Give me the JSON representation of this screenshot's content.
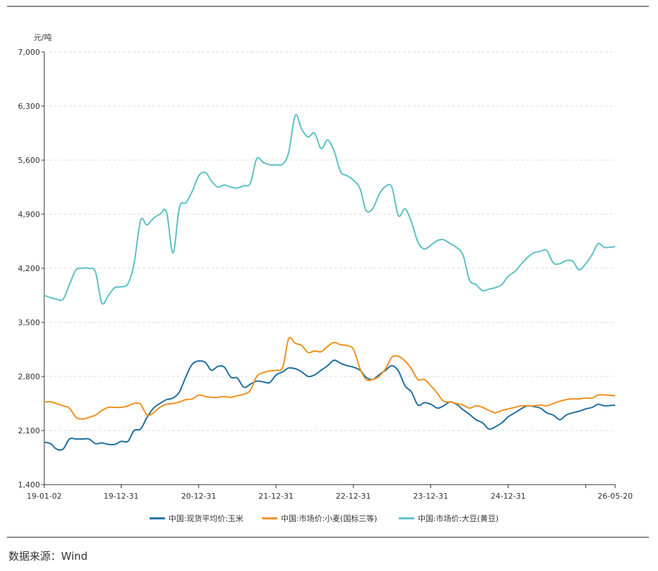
{
  "chart_data": {
    "type": "line",
    "ylabel": "元/吨",
    "ylim": [
      1400,
      7000
    ],
    "yticks": [
      1400,
      2100,
      2800,
      3500,
      4200,
      4900,
      5600,
      6300,
      7000
    ],
    "ytick_labels": [
      "1,400",
      "2,100",
      "2,800",
      "3,500",
      "4,200",
      "4,900",
      "5,600",
      "6,300",
      "7,000"
    ],
    "xlim": [
      "2019-01-02",
      "2026-05-20"
    ],
    "xticks": [
      "2019-01-02",
      "2019-12-31",
      "2020-12-31",
      "2021-12-31",
      "2022-12-31",
      "2023-12-31",
      "2024-12-31",
      "2026-05-20"
    ],
    "xtick_labels": [
      "19-01-02",
      "19-12-31",
      "20-12-31",
      "21-12-31",
      "22-12-31",
      "23-12-31",
      "24-12-31",
      "26-05-20"
    ],
    "grid": "horizontal-dashed",
    "legend": "bottom",
    "series": [
      {
        "name": "中国:现货平均价:玉米",
        "color": "#1f6f9f",
        "points": [
          [
            "2019-01-02",
            1950
          ],
          [
            "2019-02-01",
            1930
          ],
          [
            "2019-03-01",
            1860
          ],
          [
            "2019-04-01",
            1860
          ],
          [
            "2019-05-01",
            1990
          ],
          [
            "2019-06-01",
            1990
          ],
          [
            "2019-07-01",
            1990
          ],
          [
            "2019-08-01",
            1990
          ],
          [
            "2019-09-01",
            1930
          ],
          [
            "2019-10-01",
            1940
          ],
          [
            "2019-11-01",
            1920
          ],
          [
            "2019-12-01",
            1920
          ],
          [
            "2020-01-01",
            1960
          ],
          [
            "2020-02-01",
            1960
          ],
          [
            "2020-03-01",
            2100
          ],
          [
            "2020-04-01",
            2120
          ],
          [
            "2020-05-01",
            2270
          ],
          [
            "2020-06-01",
            2390
          ],
          [
            "2020-07-01",
            2450
          ],
          [
            "2020-08-01",
            2500
          ],
          [
            "2020-09-01",
            2520
          ],
          [
            "2020-10-01",
            2600
          ],
          [
            "2020-11-01",
            2800
          ],
          [
            "2020-12-01",
            2960
          ],
          [
            "2021-01-01",
            3000
          ],
          [
            "2021-02-01",
            2980
          ],
          [
            "2021-03-01",
            2880
          ],
          [
            "2021-04-01",
            2930
          ],
          [
            "2021-05-01",
            2920
          ],
          [
            "2021-06-01",
            2790
          ],
          [
            "2021-07-01",
            2780
          ],
          [
            "2021-08-01",
            2660
          ],
          [
            "2021-09-01",
            2700
          ],
          [
            "2021-10-01",
            2740
          ],
          [
            "2021-11-01",
            2730
          ],
          [
            "2021-12-01",
            2720
          ],
          [
            "2022-01-01",
            2820
          ],
          [
            "2022-02-01",
            2860
          ],
          [
            "2022-03-01",
            2910
          ],
          [
            "2022-04-01",
            2900
          ],
          [
            "2022-05-01",
            2860
          ],
          [
            "2022-06-01",
            2800
          ],
          [
            "2022-07-01",
            2820
          ],
          [
            "2022-08-01",
            2880
          ],
          [
            "2022-09-01",
            2940
          ],
          [
            "2022-10-01",
            3010
          ],
          [
            "2022-11-01",
            2970
          ],
          [
            "2022-12-01",
            2940
          ],
          [
            "2023-01-01",
            2920
          ],
          [
            "2023-02-01",
            2880
          ],
          [
            "2023-03-01",
            2790
          ],
          [
            "2023-04-01",
            2760
          ],
          [
            "2023-05-01",
            2820
          ],
          [
            "2023-06-01",
            2880
          ],
          [
            "2023-07-01",
            2940
          ],
          [
            "2023-08-01",
            2870
          ],
          [
            "2023-09-01",
            2680
          ],
          [
            "2023-10-01",
            2600
          ],
          [
            "2023-11-01",
            2430
          ],
          [
            "2023-12-01",
            2460
          ],
          [
            "2024-01-01",
            2440
          ],
          [
            "2024-02-01",
            2390
          ],
          [
            "2024-03-01",
            2420
          ],
          [
            "2024-04-01",
            2470
          ],
          [
            "2024-05-01",
            2440
          ],
          [
            "2024-06-01",
            2370
          ],
          [
            "2024-07-01",
            2310
          ],
          [
            "2024-08-01",
            2240
          ],
          [
            "2024-09-01",
            2200
          ],
          [
            "2024-10-01",
            2120
          ],
          [
            "2024-11-01",
            2150
          ],
          [
            "2024-12-01",
            2200
          ],
          [
            "2025-01-01",
            2280
          ],
          [
            "2025-02-01",
            2330
          ],
          [
            "2025-03-01",
            2380
          ],
          [
            "2025-04-01",
            2420
          ],
          [
            "2025-05-01",
            2410
          ],
          [
            "2025-06-01",
            2390
          ],
          [
            "2025-07-01",
            2330
          ],
          [
            "2025-08-01",
            2300
          ],
          [
            "2025-09-01",
            2240
          ],
          [
            "2025-10-01",
            2300
          ],
          [
            "2025-11-01",
            2330
          ],
          [
            "2025-12-01",
            2350
          ],
          [
            "2026-01-01",
            2380
          ],
          [
            "2026-02-01",
            2400
          ],
          [
            "2026-03-01",
            2440
          ],
          [
            "2026-04-01",
            2420
          ],
          [
            "2026-05-20",
            2430
          ]
        ]
      },
      {
        "name": "中国:市场价:小麦(国标三等)",
        "color": "#f0901f",
        "points": [
          [
            "2019-01-02",
            2470
          ],
          [
            "2019-02-01",
            2470
          ],
          [
            "2019-03-01",
            2450
          ],
          [
            "2019-04-01",
            2420
          ],
          [
            "2019-05-01",
            2390
          ],
          [
            "2019-06-01",
            2270
          ],
          [
            "2019-07-01",
            2250
          ],
          [
            "2019-08-01",
            2270
          ],
          [
            "2019-09-01",
            2300
          ],
          [
            "2019-10-01",
            2360
          ],
          [
            "2019-11-01",
            2400
          ],
          [
            "2019-12-01",
            2400
          ],
          [
            "2020-01-01",
            2400
          ],
          [
            "2020-02-01",
            2420
          ],
          [
            "2020-03-01",
            2450
          ],
          [
            "2020-04-01",
            2440
          ],
          [
            "2020-05-01",
            2300
          ],
          [
            "2020-06-01",
            2330
          ],
          [
            "2020-07-01",
            2400
          ],
          [
            "2020-08-01",
            2440
          ],
          [
            "2020-09-01",
            2450
          ],
          [
            "2020-10-01",
            2470
          ],
          [
            "2020-11-01",
            2500
          ],
          [
            "2020-12-01",
            2510
          ],
          [
            "2021-01-01",
            2560
          ],
          [
            "2021-02-01",
            2540
          ],
          [
            "2021-03-01",
            2530
          ],
          [
            "2021-04-01",
            2530
          ],
          [
            "2021-05-01",
            2540
          ],
          [
            "2021-06-01",
            2530
          ],
          [
            "2021-07-01",
            2550
          ],
          [
            "2021-08-01",
            2570
          ],
          [
            "2021-09-01",
            2620
          ],
          [
            "2021-10-01",
            2800
          ],
          [
            "2021-11-01",
            2850
          ],
          [
            "2021-12-01",
            2870
          ],
          [
            "2022-01-01",
            2880
          ],
          [
            "2022-02-01",
            2920
          ],
          [
            "2022-03-01",
            3290
          ],
          [
            "2022-04-01",
            3230
          ],
          [
            "2022-05-01",
            3200
          ],
          [
            "2022-06-01",
            3110
          ],
          [
            "2022-07-01",
            3130
          ],
          [
            "2022-08-01",
            3120
          ],
          [
            "2022-09-01",
            3190
          ],
          [
            "2022-10-01",
            3240
          ],
          [
            "2022-11-01",
            3210
          ],
          [
            "2022-12-01",
            3200
          ],
          [
            "2023-01-01",
            3150
          ],
          [
            "2023-02-01",
            2900
          ],
          [
            "2023-03-01",
            2760
          ],
          [
            "2023-04-01",
            2760
          ],
          [
            "2023-05-01",
            2800
          ],
          [
            "2023-06-01",
            2900
          ],
          [
            "2023-07-01",
            3050
          ],
          [
            "2023-08-01",
            3060
          ],
          [
            "2023-09-01",
            3000
          ],
          [
            "2023-10-01",
            2900
          ],
          [
            "2023-11-01",
            2760
          ],
          [
            "2023-12-01",
            2760
          ],
          [
            "2024-01-01",
            2680
          ],
          [
            "2024-02-01",
            2580
          ],
          [
            "2024-03-01",
            2480
          ],
          [
            "2024-04-01",
            2470
          ],
          [
            "2024-05-01",
            2450
          ],
          [
            "2024-06-01",
            2430
          ],
          [
            "2024-07-01",
            2390
          ],
          [
            "2024-08-01",
            2420
          ],
          [
            "2024-09-01",
            2400
          ],
          [
            "2024-10-01",
            2360
          ],
          [
            "2024-11-01",
            2330
          ],
          [
            "2024-12-01",
            2360
          ],
          [
            "2025-01-01",
            2380
          ],
          [
            "2025-02-01",
            2400
          ],
          [
            "2025-03-01",
            2420
          ],
          [
            "2025-04-01",
            2420
          ],
          [
            "2025-05-01",
            2420
          ],
          [
            "2025-06-01",
            2430
          ],
          [
            "2025-07-01",
            2420
          ],
          [
            "2025-08-01",
            2450
          ],
          [
            "2025-09-01",
            2480
          ],
          [
            "2025-10-01",
            2500
          ],
          [
            "2025-11-01",
            2510
          ],
          [
            "2025-12-01",
            2510
          ],
          [
            "2026-01-01",
            2520
          ],
          [
            "2026-02-01",
            2520
          ],
          [
            "2026-03-01",
            2560
          ],
          [
            "2026-04-01",
            2560
          ],
          [
            "2026-05-20",
            2550
          ]
        ]
      },
      {
        "name": "中国:市场价:大豆(黄豆)",
        "color": "#5cc0c5",
        "points": [
          [
            "2019-01-02",
            3850
          ],
          [
            "2019-02-01",
            3820
          ],
          [
            "2019-03-01",
            3800
          ],
          [
            "2019-04-01",
            3800
          ],
          [
            "2019-05-01",
            3990
          ],
          [
            "2019-06-01",
            4180
          ],
          [
            "2019-07-01",
            4200
          ],
          [
            "2019-08-01",
            4200
          ],
          [
            "2019-09-01",
            4150
          ],
          [
            "2019-10-01",
            3750
          ],
          [
            "2019-11-01",
            3850
          ],
          [
            "2019-12-01",
            3950
          ],
          [
            "2020-01-01",
            3960
          ],
          [
            "2020-02-01",
            4000
          ],
          [
            "2020-03-01",
            4260
          ],
          [
            "2020-04-01",
            4820
          ],
          [
            "2020-05-01",
            4760
          ],
          [
            "2020-06-01",
            4850
          ],
          [
            "2020-07-01",
            4900
          ],
          [
            "2020-08-01",
            4930
          ],
          [
            "2020-09-01",
            4400
          ],
          [
            "2020-10-01",
            4990
          ],
          [
            "2020-11-01",
            5050
          ],
          [
            "2020-12-01",
            5200
          ],
          [
            "2021-01-01",
            5400
          ],
          [
            "2021-02-01",
            5440
          ],
          [
            "2021-03-01",
            5330
          ],
          [
            "2021-04-01",
            5250
          ],
          [
            "2021-05-01",
            5280
          ],
          [
            "2021-06-01",
            5250
          ],
          [
            "2021-07-01",
            5240
          ],
          [
            "2021-08-01",
            5270
          ],
          [
            "2021-09-01",
            5300
          ],
          [
            "2021-10-01",
            5620
          ],
          [
            "2021-11-01",
            5570
          ],
          [
            "2021-12-01",
            5540
          ],
          [
            "2022-01-01",
            5540
          ],
          [
            "2022-02-01",
            5550
          ],
          [
            "2022-03-01",
            5700
          ],
          [
            "2022-04-01",
            6180
          ],
          [
            "2022-05-01",
            6000
          ],
          [
            "2022-06-01",
            5900
          ],
          [
            "2022-07-01",
            5950
          ],
          [
            "2022-08-01",
            5750
          ],
          [
            "2022-09-01",
            5860
          ],
          [
            "2022-10-01",
            5720
          ],
          [
            "2022-11-01",
            5450
          ],
          [
            "2022-12-01",
            5400
          ],
          [
            "2023-01-01",
            5340
          ],
          [
            "2023-02-01",
            5230
          ],
          [
            "2023-03-01",
            4950
          ],
          [
            "2023-04-01",
            4970
          ],
          [
            "2023-05-01",
            5150
          ],
          [
            "2023-06-01",
            5260
          ],
          [
            "2023-07-01",
            5250
          ],
          [
            "2023-08-01",
            4880
          ],
          [
            "2023-09-01",
            4970
          ],
          [
            "2023-10-01",
            4800
          ],
          [
            "2023-11-01",
            4540
          ],
          [
            "2023-12-01",
            4450
          ],
          [
            "2024-01-01",
            4500
          ],
          [
            "2024-02-01",
            4560
          ],
          [
            "2024-03-01",
            4570
          ],
          [
            "2024-04-01",
            4520
          ],
          [
            "2024-05-01",
            4470
          ],
          [
            "2024-06-01",
            4370
          ],
          [
            "2024-07-01",
            4050
          ],
          [
            "2024-08-01",
            3990
          ],
          [
            "2024-09-01",
            3910
          ],
          [
            "2024-10-01",
            3930
          ],
          [
            "2024-11-01",
            3950
          ],
          [
            "2024-12-01",
            3990
          ],
          [
            "2025-01-01",
            4100
          ],
          [
            "2025-02-01",
            4160
          ],
          [
            "2025-03-01",
            4250
          ],
          [
            "2025-04-01",
            4340
          ],
          [
            "2025-05-01",
            4400
          ],
          [
            "2025-06-01",
            4420
          ],
          [
            "2025-07-01",
            4430
          ],
          [
            "2025-08-01",
            4270
          ],
          [
            "2025-09-01",
            4260
          ],
          [
            "2025-10-01",
            4300
          ],
          [
            "2025-11-01",
            4290
          ],
          [
            "2025-12-01",
            4180
          ],
          [
            "2026-01-01",
            4260
          ],
          [
            "2026-02-01",
            4380
          ],
          [
            "2026-03-01",
            4520
          ],
          [
            "2026-04-01",
            4470
          ],
          [
            "2026-05-20",
            4480
          ]
        ]
      }
    ]
  },
  "source": "数据来源：Wind",
  "colors": {
    "grid": "#dddddd",
    "axis": "#333333",
    "rule": "#8a8a8a"
  }
}
